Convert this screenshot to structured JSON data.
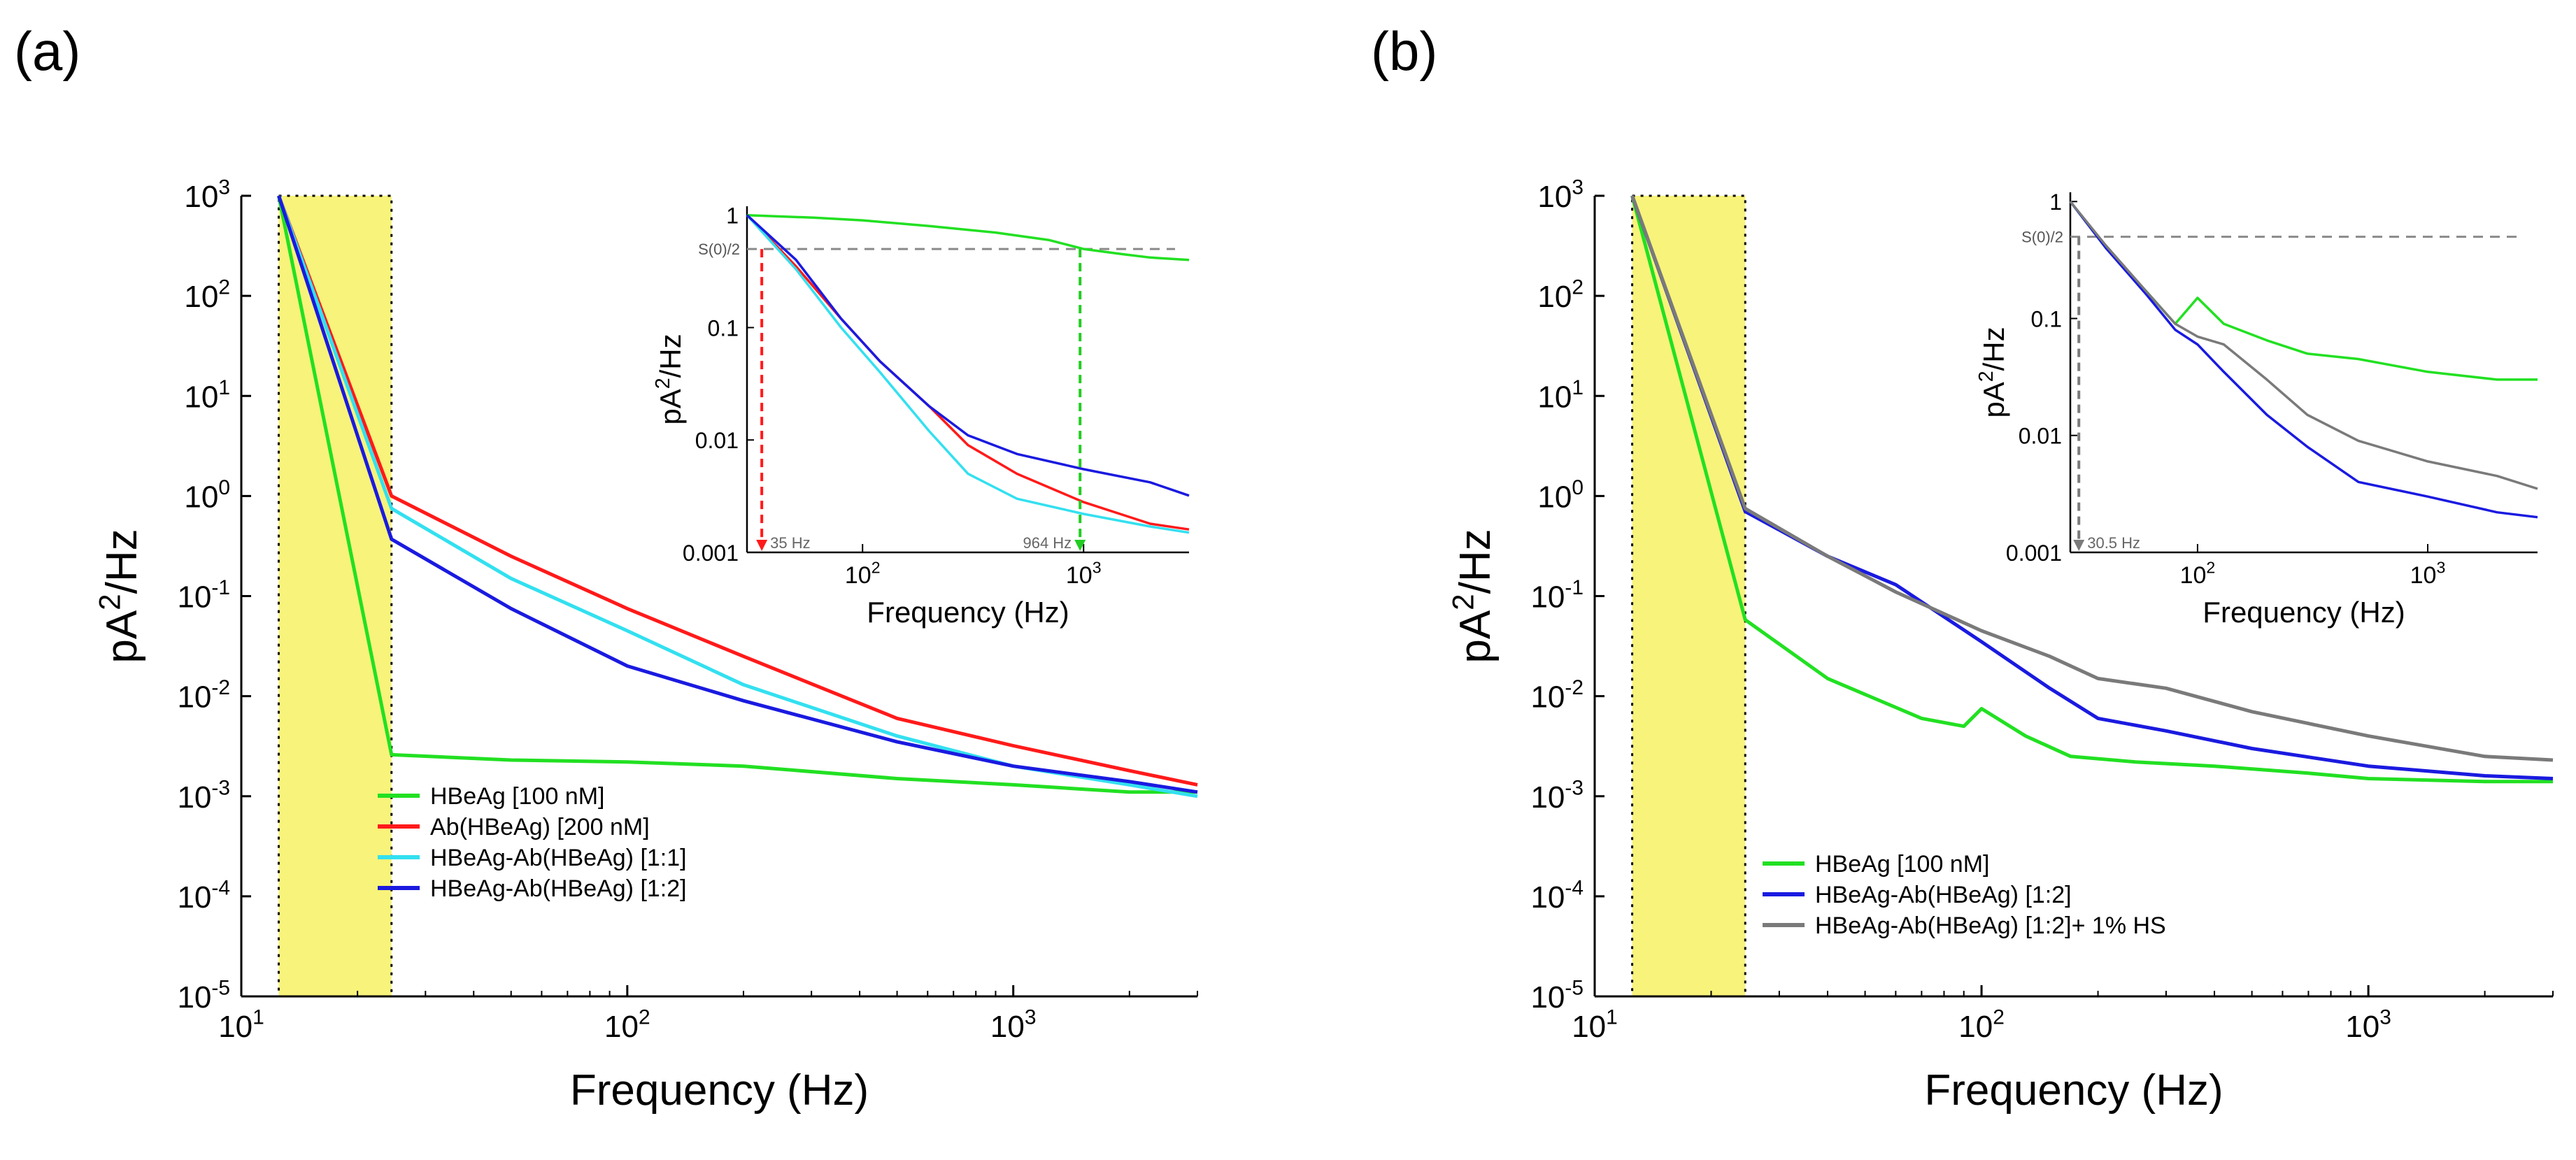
{
  "figure": {
    "panel_a_label": "(a)",
    "panel_b_label": "(b)"
  },
  "chart_data": [
    {
      "id": "a",
      "type": "line",
      "xscale": "log",
      "yscale": "log",
      "xlim": [
        10,
        3000
      ],
      "ylim": [
        1e-05,
        1000
      ],
      "xlabel": "Frequency (Hz)",
      "ylabel": "pA²/Hz",
      "xticks": [
        {
          "v": 10,
          "base": "10",
          "exp": "1"
        },
        {
          "v": 100,
          "base": "10",
          "exp": "2"
        },
        {
          "v": 1000,
          "base": "10",
          "exp": "3"
        }
      ],
      "yticks": [
        {
          "v": 1000,
          "base": "10",
          "exp": "3"
        },
        {
          "v": 100,
          "base": "10",
          "exp": "2"
        },
        {
          "v": 10,
          "base": "10",
          "exp": "1"
        },
        {
          "v": 1,
          "base": "10",
          "exp": "0"
        },
        {
          "v": 0.1,
          "base": "10",
          "exp": "-1"
        },
        {
          "v": 0.01,
          "base": "10",
          "exp": "-2"
        },
        {
          "v": 0.001,
          "base": "10",
          "exp": "-3"
        },
        {
          "v": 0.0001,
          "base": "10",
          "exp": "-4"
        },
        {
          "v": 1e-05,
          "base": "10",
          "exp": "-5"
        }
      ],
      "highlight": {
        "x0": 12.5,
        "x1": 24.5,
        "color": "#f8f37a"
      },
      "legend_position": "bottom-right",
      "series": [
        {
          "name": "HBeAg [100 nM]",
          "color": "#22e022",
          "x": [
            12.5,
            24.5,
            50,
            100,
            200,
            500,
            1000,
            2000,
            3000
          ],
          "y": [
            1000,
            0.0026,
            0.0023,
            0.0022,
            0.002,
            0.0015,
            0.0013,
            0.0011,
            0.0011
          ]
        },
        {
          "name": "Ab(HBeAg) [200 nM]",
          "color": "#ff1a1a",
          "x": [
            12.5,
            24.5,
            50,
            100,
            200,
            500,
            1000,
            2000,
            3000
          ],
          "y": [
            1000,
            1.0,
            0.25,
            0.075,
            0.025,
            0.006,
            0.0032,
            0.0018,
            0.0013
          ]
        },
        {
          "name": "HBeAg-Ab(HBeAg) [1:1]",
          "color": "#33e0f0",
          "x": [
            12.5,
            24.5,
            50,
            100,
            200,
            500,
            1000,
            2000,
            3000
          ],
          "y": [
            1000,
            0.75,
            0.15,
            0.045,
            0.013,
            0.004,
            0.002,
            0.0013,
            0.001
          ]
        },
        {
          "name": "HBeAg-Ab(HBeAg) [1:2]",
          "color": "#1a1ae0",
          "x": [
            12.5,
            24.5,
            50,
            100,
            200,
            500,
            1000,
            2000,
            3000
          ],
          "y": [
            1000,
            0.37,
            0.075,
            0.02,
            0.009,
            0.0035,
            0.002,
            0.0014,
            0.0011
          ]
        }
      ],
      "inset": {
        "type": "line",
        "xscale": "log",
        "yscale": "log",
        "xlim": [
          30,
          3000
        ],
        "ylim": [
          0.001,
          1.2
        ],
        "xlabel": "Frequency (Hz)",
        "ylabel": "pA²/Hz",
        "xticks": [
          {
            "v": 100,
            "base": "10",
            "exp": "2"
          },
          {
            "v": 1000,
            "base": "10",
            "exp": "3"
          }
        ],
        "yticks": [
          {
            "v": 1,
            "text": "1"
          },
          {
            "v": 0.1,
            "text": "0.1"
          },
          {
            "v": 0.01,
            "text": "0.01"
          },
          {
            "v": 0.001,
            "text": "0.001"
          }
        ],
        "threshold_label": "S(0)/2",
        "threshold_y": 0.5,
        "markers": [
          {
            "x": 35,
            "label": "35 Hz",
            "color": "#ff1a1a"
          },
          {
            "x": 964,
            "label": "964 Hz",
            "color": "#22cc22"
          }
        ],
        "series": [
          {
            "name": "HBeAg [100 nM]",
            "color": "#22e022",
            "x": [
              30,
              60,
              100,
              200,
              400,
              700,
              1000,
              1500,
              2000,
              3000
            ],
            "y": [
              1,
              0.95,
              0.9,
              0.8,
              0.7,
              0.6,
              0.5,
              0.45,
              0.42,
              0.4
            ]
          },
          {
            "name": "Ab(HBeAg) [200 nM]",
            "color": "#ff1a1a",
            "x": [
              30,
              50,
              80,
              120,
              200,
              300,
              500,
              1000,
              2000,
              3000
            ],
            "y": [
              1,
              0.35,
              0.12,
              0.05,
              0.02,
              0.009,
              0.005,
              0.0028,
              0.0018,
              0.0016
            ]
          },
          {
            "name": "HBeAg-Ab(HBeAg) [1:1]",
            "color": "#33e0f0",
            "x": [
              30,
              50,
              80,
              120,
              200,
              300,
              500,
              1000,
              2000,
              3000
            ],
            "y": [
              1,
              0.33,
              0.1,
              0.04,
              0.012,
              0.005,
              0.003,
              0.0022,
              0.0017,
              0.0015
            ]
          },
          {
            "name": "HBeAg-Ab(HBeAg) [1:2]",
            "color": "#1a1ae0",
            "x": [
              30,
              50,
              80,
              120,
              200,
              300,
              500,
              1000,
              2000,
              3000
            ],
            "y": [
              1,
              0.4,
              0.12,
              0.05,
              0.02,
              0.011,
              0.0075,
              0.0055,
              0.0042,
              0.0032
            ]
          }
        ]
      }
    },
    {
      "id": "b",
      "type": "line",
      "xscale": "log",
      "yscale": "log",
      "xlim": [
        10,
        3000
      ],
      "ylim": [
        1e-05,
        1000
      ],
      "xlabel": "Frequency (Hz)",
      "ylabel": "pA²/Hz",
      "xticks": [
        {
          "v": 10,
          "base": "10",
          "exp": "1"
        },
        {
          "v": 100,
          "base": "10",
          "exp": "2"
        },
        {
          "v": 1000,
          "base": "10",
          "exp": "3"
        }
      ],
      "yticks": [
        {
          "v": 1000,
          "base": "10",
          "exp": "3"
        },
        {
          "v": 100,
          "base": "10",
          "exp": "2"
        },
        {
          "v": 10,
          "base": "10",
          "exp": "1"
        },
        {
          "v": 1,
          "base": "10",
          "exp": "0"
        },
        {
          "v": 0.1,
          "base": "10",
          "exp": "-1"
        },
        {
          "v": 0.01,
          "base": "10",
          "exp": "-2"
        },
        {
          "v": 0.001,
          "base": "10",
          "exp": "-3"
        },
        {
          "v": 0.0001,
          "base": "10",
          "exp": "-4"
        },
        {
          "v": 1e-05,
          "base": "10",
          "exp": "-5"
        }
      ],
      "highlight": {
        "x0": 12.5,
        "x1": 24.5,
        "color": "#f8f37a"
      },
      "legend_position": "bottom-right",
      "series": [
        {
          "name": "HBeAg [100 nM]",
          "color": "#22e022",
          "x": [
            12.5,
            24.5,
            40,
            70,
            90,
            100,
            130,
            170,
            250,
            400,
            700,
            1000,
            2000,
            3000
          ],
          "y": [
            1000,
            0.058,
            0.015,
            0.006,
            0.005,
            0.0075,
            0.004,
            0.0025,
            0.0022,
            0.002,
            0.0017,
            0.0015,
            0.0014,
            0.0014
          ]
        },
        {
          "name": "HBeAg-Ab(HBeAg) [1:2]",
          "color": "#1a1ae0",
          "x": [
            12.5,
            24.5,
            40,
            60,
            100,
            150,
            200,
            300,
            500,
            1000,
            2000,
            3000
          ],
          "y": [
            1000,
            0.7,
            0.25,
            0.13,
            0.035,
            0.012,
            0.006,
            0.0045,
            0.003,
            0.002,
            0.0016,
            0.0015
          ]
        },
        {
          "name": "HBeAg-Ab(HBeAg) [1:2]+ 1% HS",
          "color": "#7a7a7a",
          "x": [
            12.5,
            24.5,
            40,
            60,
            100,
            150,
            200,
            300,
            500,
            1000,
            2000,
            3000
          ],
          "y": [
            1000,
            0.75,
            0.25,
            0.11,
            0.045,
            0.025,
            0.015,
            0.012,
            0.007,
            0.004,
            0.0025,
            0.0023
          ]
        }
      ],
      "inset": {
        "type": "line",
        "xscale": "log",
        "yscale": "log",
        "xlim": [
          28,
          3000
        ],
        "ylim": [
          0.001,
          1.2
        ],
        "xlabel": "Frequency (Hz)",
        "ylabel": "pA²/Hz",
        "xticks": [
          {
            "v": 100,
            "base": "10",
            "exp": "2"
          },
          {
            "v": 1000,
            "base": "10",
            "exp": "3"
          }
        ],
        "yticks": [
          {
            "v": 1,
            "text": "1"
          },
          {
            "v": 0.1,
            "text": "0.1"
          },
          {
            "v": 0.01,
            "text": "0.01"
          },
          {
            "v": 0.001,
            "text": "0.001"
          }
        ],
        "threshold_label": "S(0)/2",
        "threshold_y": 0.5,
        "markers": [
          {
            "x": 30.5,
            "label": "30.5 Hz",
            "color": "#7a7a7a"
          }
        ],
        "series": [
          {
            "name": "HBeAg [100 nM]",
            "color": "#22e022",
            "x": [
              28,
              40,
              60,
              80,
              100,
              130,
              200,
              300,
              500,
              1000,
              2000,
              3000
            ],
            "y": [
              1,
              0.4,
              0.17,
              0.09,
              0.15,
              0.09,
              0.065,
              0.05,
              0.045,
              0.035,
              0.03,
              0.03
            ]
          },
          {
            "name": "HBeAg-Ab(HBeAg) [1:2]",
            "color": "#1a1ae0",
            "x": [
              28,
              40,
              60,
              80,
              100,
              130,
              200,
              300,
              500,
              1000,
              2000,
              3000
            ],
            "y": [
              1,
              0.4,
              0.16,
              0.08,
              0.06,
              0.035,
              0.015,
              0.008,
              0.004,
              0.003,
              0.0022,
              0.002
            ]
          },
          {
            "name": "HBeAg-Ab(HBeAg) [1:2]+ 1% HS",
            "color": "#7a7a7a",
            "x": [
              28,
              40,
              60,
              80,
              100,
              130,
              200,
              300,
              500,
              1000,
              2000,
              3000
            ],
            "y": [
              1,
              0.42,
              0.17,
              0.09,
              0.07,
              0.06,
              0.03,
              0.015,
              0.009,
              0.006,
              0.0045,
              0.0035
            ]
          }
        ]
      }
    }
  ]
}
